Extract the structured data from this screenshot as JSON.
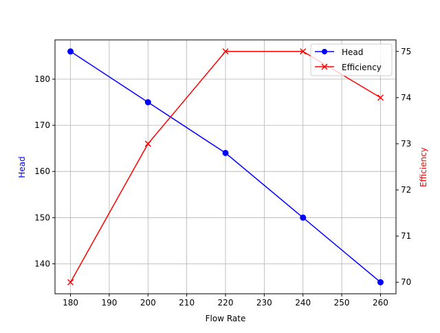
{
  "chart_data": {
    "type": "line",
    "title": "",
    "xlabel": "Flow Rate",
    "ylabel": "Head",
    "y2label": "Efficiency",
    "x": [
      180,
      200,
      220,
      240,
      260
    ],
    "series": [
      {
        "name": "Head",
        "axis": "left",
        "color": "#0000ff",
        "marker": "o",
        "values": [
          186,
          175,
          164,
          150,
          136
        ]
      },
      {
        "name": "Efficiency",
        "axis": "right",
        "color": "#ff0000",
        "marker": "x",
        "values": [
          70,
          73,
          75,
          75,
          74
        ]
      }
    ],
    "xticks": [
      180,
      190,
      200,
      210,
      220,
      230,
      240,
      250,
      260
    ],
    "yticks": [
      140,
      150,
      160,
      170,
      180
    ],
    "y2ticks": [
      70,
      71,
      72,
      73,
      74,
      75
    ],
    "xlim": [
      176,
      264
    ],
    "ylim": [
      133.5,
      188.5
    ],
    "y2lim": [
      69.75,
      75.25
    ],
    "grid": true,
    "legend_position": "upper right"
  }
}
